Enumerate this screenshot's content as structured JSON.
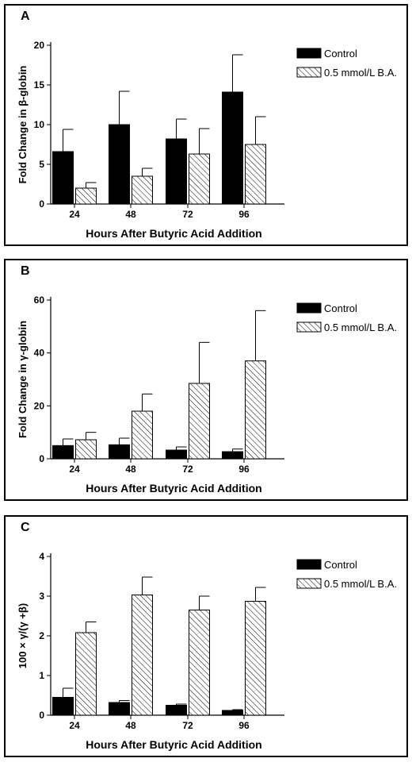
{
  "chart_data": [
    {
      "panel_label": "A",
      "type": "bar",
      "categories": [
        "24",
        "48",
        "72",
        "96"
      ],
      "series": [
        {
          "name": "Control",
          "values": [
            6.6,
            10.0,
            8.2,
            14.1
          ],
          "errors": [
            2.8,
            4.2,
            2.5,
            4.7
          ],
          "color": "#000000",
          "pattern": "solid"
        },
        {
          "name": "0.5 mmol/L B.A.",
          "values": [
            2.0,
            3.5,
            6.3,
            7.5
          ],
          "errors": [
            0.7,
            1.0,
            3.2,
            3.5
          ],
          "color": "#ffffff",
          "pattern": "hatch"
        }
      ],
      "ylim": [
        0,
        20
      ],
      "yticks": [
        "0",
        "5",
        "10",
        "15",
        "20"
      ],
      "ylabel": "Fold Change in β-globin",
      "xlabel": "Hours After Butyric Acid Addition",
      "legend": "top-right",
      "grid": false
    },
    {
      "panel_label": "B",
      "type": "bar",
      "categories": [
        "24",
        "48",
        "72",
        "96"
      ],
      "series": [
        {
          "name": "Control",
          "values": [
            5.0,
            5.3,
            3.3,
            2.7
          ],
          "errors": [
            2.5,
            2.5,
            1.2,
            1.0
          ],
          "color": "#000000",
          "pattern": "solid"
        },
        {
          "name": "0.5 mmol/L B.A.",
          "values": [
            7.2,
            18.0,
            28.5,
            37.0
          ],
          "errors": [
            2.8,
            6.5,
            15.5,
            19.0
          ],
          "color": "#ffffff",
          "pattern": "hatch"
        }
      ],
      "ylim": [
        0,
        60
      ],
      "yticks": [
        "0",
        "20",
        "40",
        "60"
      ],
      "ylabel": "Fold Change in γ-globin",
      "xlabel": "Hours After Butyric Acid Addition",
      "legend": "top-right",
      "grid": false
    },
    {
      "panel_label": "C",
      "type": "bar",
      "categories": [
        "24",
        "48",
        "72",
        "96"
      ],
      "series": [
        {
          "name": "Control",
          "values": [
            0.45,
            0.32,
            0.25,
            0.12
          ],
          "errors": [
            0.23,
            0.05,
            0.03,
            0.02
          ],
          "color": "#000000",
          "pattern": "solid"
        },
        {
          "name": "0.5 mmol/L B.A.",
          "values": [
            2.08,
            3.03,
            2.65,
            2.87
          ],
          "errors": [
            0.27,
            0.45,
            0.35,
            0.35
          ],
          "color": "#ffffff",
          "pattern": "hatch"
        }
      ],
      "ylim": [
        0,
        4
      ],
      "yticks": [
        "0",
        "1",
        "2",
        "3",
        "4"
      ],
      "ylabel": "100 × γ/(γ +β)",
      "xlabel": "Hours After Butyric Acid Addition",
      "legend": "top-right",
      "grid": false
    }
  ]
}
